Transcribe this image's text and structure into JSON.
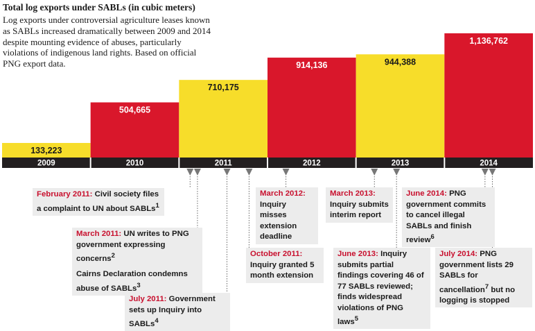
{
  "title": "Total log exports under SABLs (in cubic meters)",
  "subtitle": "Log exports under controversial agriculture leases known as SABLs increased dramatically between 2009 and 2014 despite mounting evidence of abuses, particularly violations of indigenous land rights. Based on official PNG export data.",
  "colors": {
    "yellow": "#f7dd2a",
    "red": "#d9172b",
    "axis": "#231f20",
    "marker": "#777777",
    "date_red": "#c8102e",
    "box_bg": "#ececec"
  },
  "chart_data": {
    "type": "bar",
    "categories": [
      "2009",
      "2010",
      "2011",
      "2012",
      "2013",
      "2014"
    ],
    "values": [
      133223,
      504665,
      710175,
      914136,
      944388,
      1136762
    ],
    "value_labels": [
      "133,223",
      "504,665",
      "710,175",
      "914,136",
      "944,388",
      "1,136,762"
    ],
    "bar_colors": [
      "yellow",
      "red",
      "yellow",
      "red",
      "yellow",
      "red"
    ],
    "ylim": [
      0,
      1136762
    ],
    "grid": false
  },
  "events": [
    {
      "date": "February 2011:",
      "text": "Civil society files a complaint to UN about SABLs",
      "note": "1",
      "month": "2011-02"
    },
    {
      "date": "March 2011:",
      "text": "UN writes to PNG government expressing concerns",
      "note": "2",
      "extra": "Cairns Declaration condemns abuse of SABLs",
      "extra_note": "3",
      "month": "2011-03"
    },
    {
      "date": "July 2011:",
      "text": "Government sets up Inquiry into SABLs",
      "note": "4",
      "month": "2011-07"
    },
    {
      "date": "October 2011:",
      "text": "Inquiry granted 5 month extension",
      "note": "",
      "month": "2011-10"
    },
    {
      "date": "March 2012:",
      "text": "Inquiry misses extension deadline",
      "note": "",
      "month": "2012-03"
    },
    {
      "date": "March 2013:",
      "text": "Inquiry submits interim report",
      "note": "",
      "month": "2013-03"
    },
    {
      "date": "June 2013:",
      "text": "Inquiry submits partial findings covering 46 of 77 SABLs reviewed; finds widespread violations of PNG laws",
      "note": "5",
      "month": "2013-06"
    },
    {
      "date": "June 2014:",
      "text": "PNG government commits to cancel illegal SABLs and finish review",
      "note": "6",
      "month": "2014-06"
    },
    {
      "date": "July 2014:",
      "text": "PNG government lists 29 SABLs for cancellation",
      "note": "7",
      "extra_inline": "but no logging is stopped",
      "month": "2014-07"
    }
  ]
}
